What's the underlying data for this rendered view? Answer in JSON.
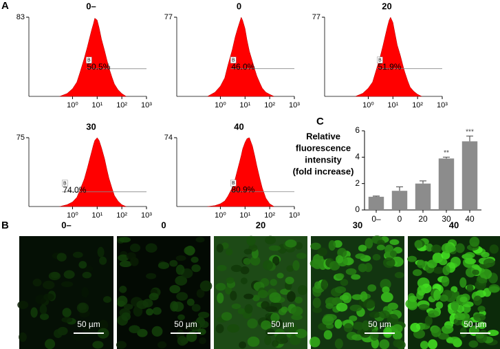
{
  "chart_data": [
    {
      "type": "histogram",
      "panel": "A",
      "title": "0–",
      "x": [
        0.3,
        0.6,
        1,
        1.5,
        2,
        3,
        4,
        5,
        6,
        7,
        8,
        10,
        12,
        15,
        20,
        25,
        30,
        40,
        50,
        70,
        100,
        150
      ],
      "values": [
        0,
        3,
        8,
        15,
        25,
        40,
        52,
        62,
        70,
        76,
        82,
        80,
        72,
        60,
        48,
        38,
        30,
        20,
        13,
        7,
        3,
        0
      ],
      "color": "#ff0000",
      "log_x": true,
      "xlim": [
        0.017,
        1000
      ],
      "xticks": [
        {
          "value": 1,
          "label": "10⁰"
        },
        {
          "value": 10,
          "label": "10¹"
        },
        {
          "value": 100,
          "label": "10²"
        },
        {
          "value": 1000,
          "label": "10³"
        }
      ],
      "ylim": [
        0,
        83
      ],
      "yticks": [
        83
      ],
      "gate_label": "B",
      "gate_percent": "50.5%",
      "gate_x": [
        3.6,
        1000
      ],
      "gate_y": 29
    },
    {
      "type": "histogram",
      "title": "0",
      "x": [
        0.3,
        0.6,
        1,
        1.5,
        2,
        3,
        4,
        5,
        6,
        7,
        8,
        10,
        12,
        15,
        20,
        25,
        30,
        40,
        50,
        70,
        100,
        150
      ],
      "values": [
        0,
        4,
        10,
        18,
        30,
        45,
        58,
        66,
        72,
        77,
        74,
        66,
        55,
        44,
        34,
        26,
        20,
        13,
        8,
        4,
        2,
        0
      ],
      "color": "#ff0000",
      "log_x": true,
      "xlim": [
        0.017,
        1000
      ],
      "xticks": [
        {
          "value": 1,
          "label": "10⁰"
        },
        {
          "value": 10,
          "label": "10¹"
        },
        {
          "value": 100,
          "label": "10²"
        },
        {
          "value": 1000,
          "label": "10³"
        }
      ],
      "ylim": [
        0,
        77
      ],
      "yticks": [
        77
      ],
      "gate_label": "B",
      "gate_percent": "46.0%",
      "gate_x": [
        2.6,
        1000
      ],
      "gate_y": 27
    },
    {
      "type": "histogram",
      "title": "20",
      "x": [
        0.3,
        0.6,
        1,
        1.5,
        2,
        3,
        4,
        5,
        6,
        7,
        8,
        10,
        12,
        15,
        20,
        25,
        30,
        40,
        50,
        70,
        100,
        150
      ],
      "values": [
        0,
        3,
        8,
        14,
        24,
        38,
        50,
        60,
        68,
        74,
        77,
        72,
        62,
        50,
        40,
        31,
        24,
        15,
        9,
        5,
        2,
        0
      ],
      "color": "#ff0000",
      "log_x": true,
      "xlim": [
        0.017,
        1000
      ],
      "xticks": [
        {
          "value": 1,
          "label": "10⁰"
        },
        {
          "value": 10,
          "label": "10¹"
        },
        {
          "value": 100,
          "label": "10²"
        },
        {
          "value": 1000,
          "label": "10³"
        }
      ],
      "ylim": [
        0,
        77
      ],
      "yticks": [
        77
      ],
      "gate_label": "B",
      "gate_percent": "51.9%",
      "gate_x": [
        2.3,
        1000
      ],
      "gate_y": 27
    },
    {
      "type": "histogram",
      "title": "30",
      "x": [
        0.3,
        0.6,
        1,
        1.5,
        2,
        3,
        4,
        5,
        6,
        7,
        8,
        10,
        12,
        15,
        20,
        25,
        30,
        40,
        50,
        70,
        100,
        150
      ],
      "values": [
        0,
        2,
        5,
        10,
        18,
        30,
        42,
        52,
        60,
        67,
        72,
        75,
        72,
        64,
        52,
        40,
        31,
        20,
        12,
        6,
        2,
        0
      ],
      "color": "#ff0000",
      "log_x": true,
      "xlim": [
        0.017,
        1000
      ],
      "xticks": [
        {
          "value": 1,
          "label": "10⁰"
        },
        {
          "value": 10,
          "label": "10¹"
        },
        {
          "value": 100,
          "label": "10²"
        },
        {
          "value": 1000,
          "label": "10³"
        }
      ],
      "ylim": [
        0,
        75
      ],
      "yticks": [
        75
      ],
      "gate_label": "B",
      "gate_percent": "74.0%",
      "gate_x": [
        0.38,
        1000
      ],
      "gate_y": 16
    },
    {
      "type": "histogram",
      "title": "40",
      "x": [
        0.3,
        0.6,
        1,
        1.5,
        2,
        3,
        4,
        5,
        6,
        7,
        8,
        10,
        12,
        15,
        20,
        25,
        30,
        40,
        50,
        70,
        100,
        150
      ],
      "values": [
        0,
        1,
        3,
        6,
        11,
        20,
        30,
        40,
        48,
        55,
        62,
        69,
        73,
        74,
        65,
        54,
        44,
        30,
        20,
        9,
        3,
        0
      ],
      "color": "#ff0000",
      "log_x": true,
      "xlim": [
        0.017,
        1000
      ],
      "xticks": [
        {
          "value": 1,
          "label": "10⁰"
        },
        {
          "value": 10,
          "label": "10¹"
        },
        {
          "value": 100,
          "label": "10²"
        },
        {
          "value": 1000,
          "label": "10³"
        }
      ],
      "ylim": [
        0,
        74
      ],
      "yticks": [
        74
      ],
      "gate_label": "B",
      "gate_percent": "80.9%",
      "gate_x": [
        2.6,
        1000
      ],
      "gate_y": 16
    },
    {
      "type": "bar",
      "panel": "C",
      "ylabel": [
        "Relative",
        "fluorescence",
        "intensity",
        "(fold increase)"
      ],
      "categories": [
        "0–",
        "0",
        "20",
        "30",
        "40"
      ],
      "values": [
        1.0,
        1.45,
        2.0,
        3.9,
        5.2
      ],
      "errors": [
        0.05,
        0.3,
        0.2,
        0.1,
        0.4
      ],
      "significance": [
        null,
        null,
        null,
        "**",
        "***"
      ],
      "color": "#8c8c8c",
      "ylim": [
        0,
        6
      ],
      "yticks": [
        0,
        2,
        4,
        6
      ]
    }
  ],
  "images": {
    "panel": "B",
    "titles": [
      "0–",
      "0",
      "20",
      "30",
      "40"
    ],
    "scale_bar_label": "50 µm"
  }
}
